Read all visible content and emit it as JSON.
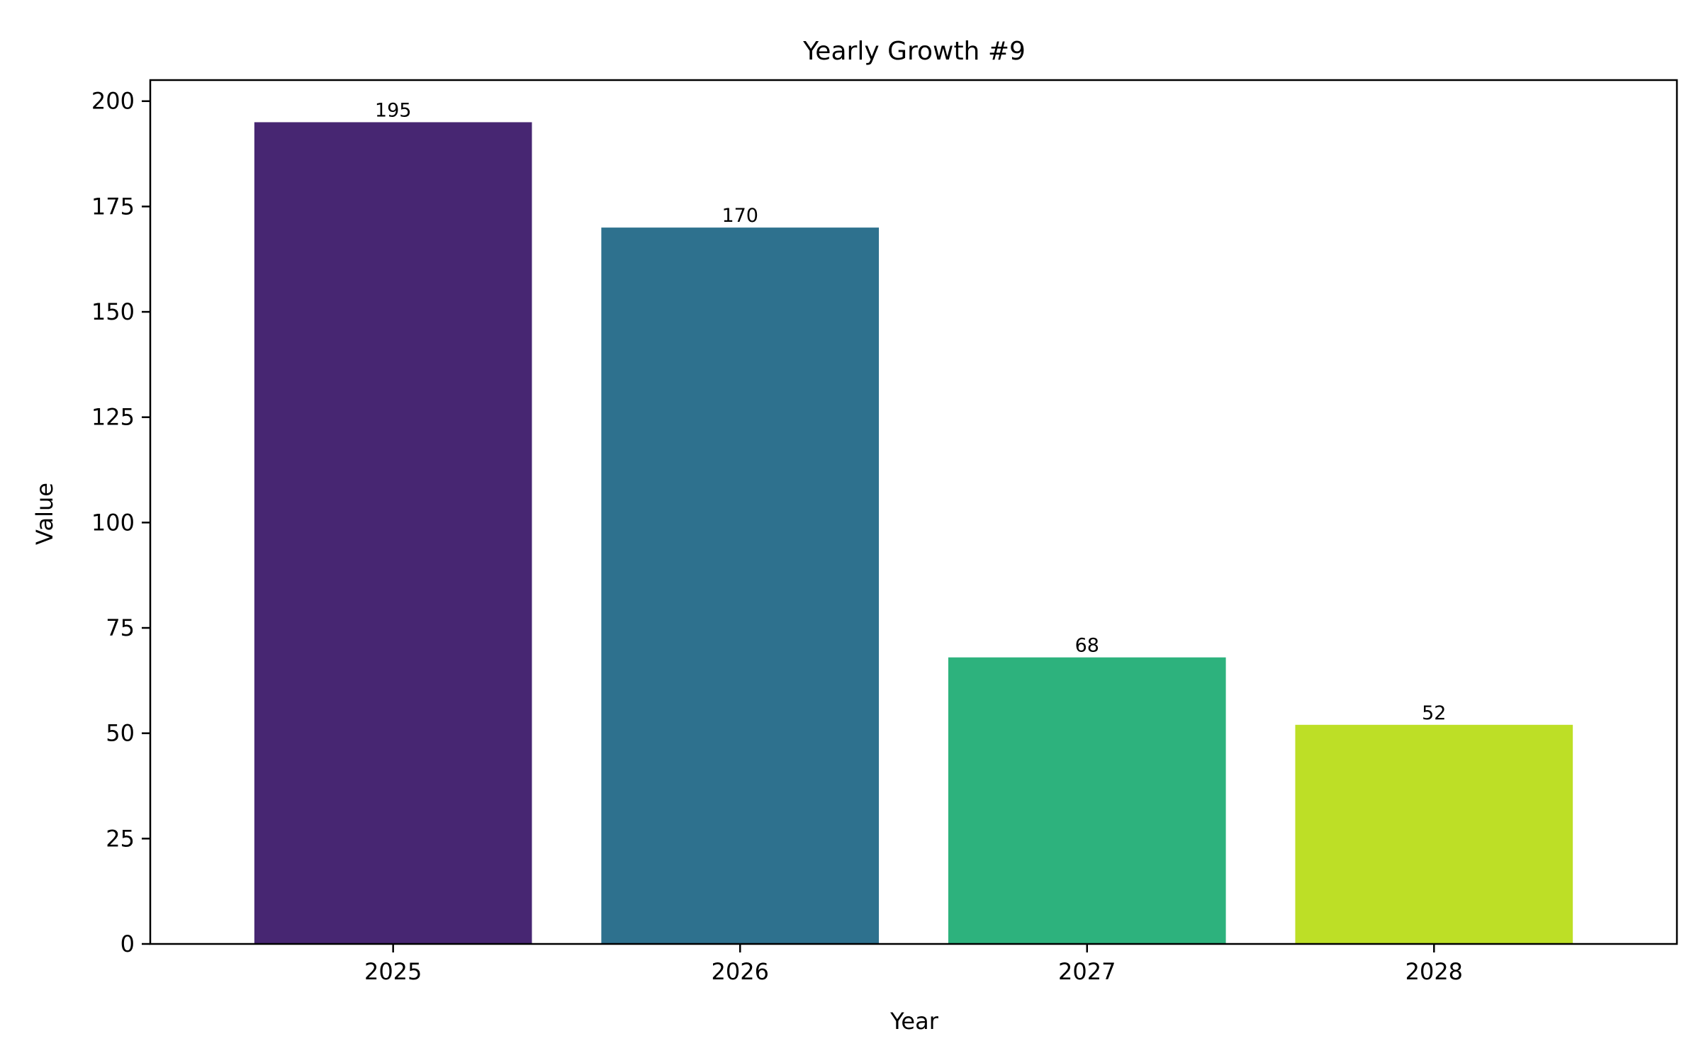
{
  "chart_data": {
    "type": "bar",
    "title": "Yearly Growth #9",
    "xlabel": "Year",
    "ylabel": "Value",
    "categories": [
      "2025",
      "2026",
      "2027",
      "2028"
    ],
    "values": [
      195,
      170,
      68,
      52
    ],
    "colors": [
      "#472672",
      "#2e718e",
      "#2db27d",
      "#bddf26"
    ],
    "ylim": [
      0,
      205
    ],
    "yticks": [
      0,
      25,
      50,
      75,
      100,
      125,
      150,
      175,
      200
    ],
    "grid": false,
    "show_data_labels": true
  }
}
